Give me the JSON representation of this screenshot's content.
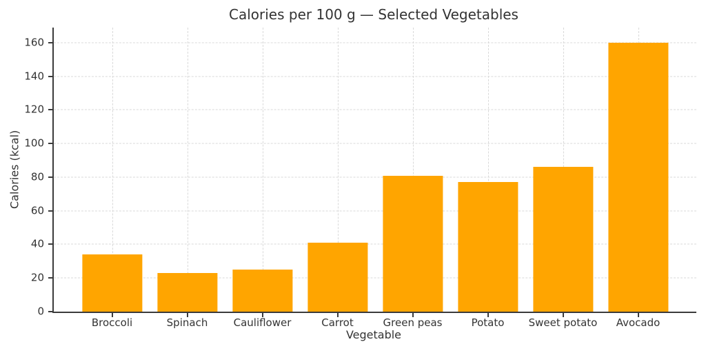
{
  "chart_data": {
    "type": "bar",
    "title": "Calories per 100 g — Selected Vegetables",
    "xlabel": "Vegetable",
    "ylabel": "Calories (kcal)",
    "categories": [
      "Broccoli",
      "Spinach",
      "Cauliflower",
      "Carrot",
      "Green peas",
      "Potato",
      "Sweet potato",
      "Avocado"
    ],
    "values": [
      34,
      23,
      25,
      41,
      81,
      77,
      86,
      160
    ],
    "yticks": [
      0,
      20,
      40,
      60,
      80,
      100,
      120,
      140,
      160
    ],
    "ylim": [
      0,
      169
    ],
    "bar_color": "#FFA500",
    "bar_width_fraction": 0.8,
    "grid": "both-dashed",
    "legend_position": "none",
    "text_color": "#333333",
    "grid_color": "#d9d9d9",
    "spine_color": "#3a3a3a",
    "background": "#ffffff"
  }
}
